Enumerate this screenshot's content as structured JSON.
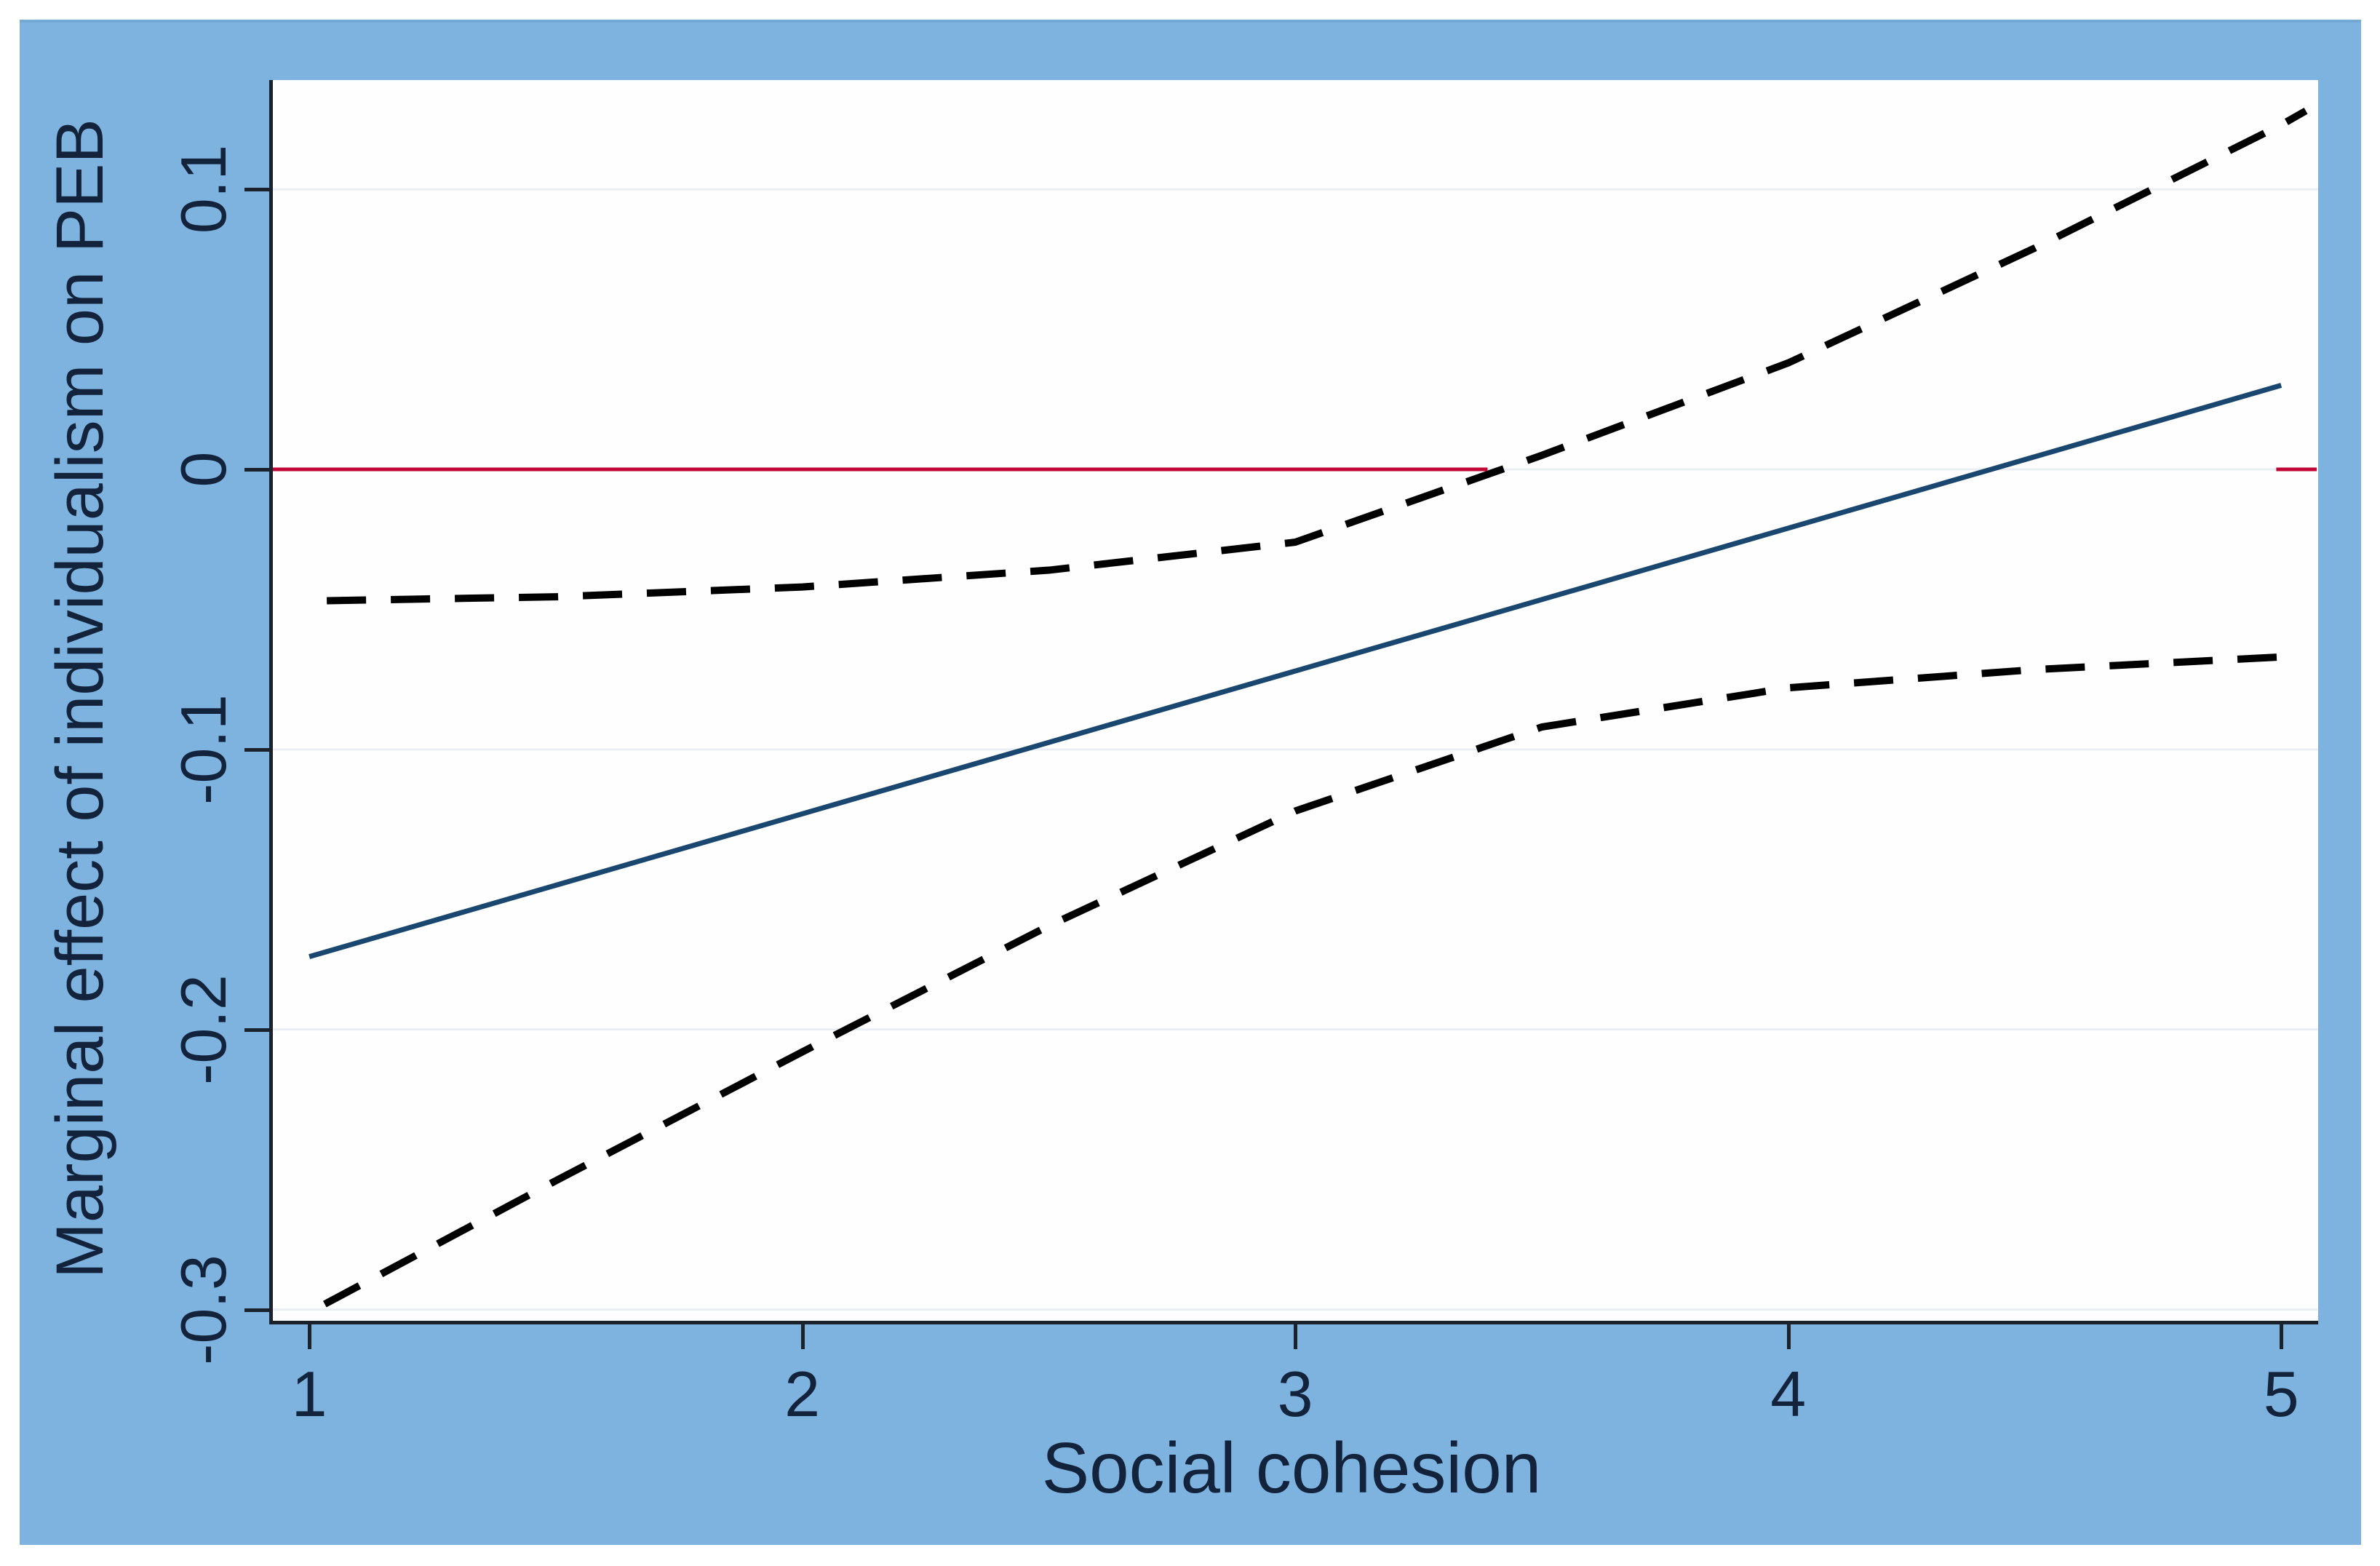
{
  "chart_data": {
    "type": "line",
    "title": "",
    "xlabel": "Social cohesion",
    "ylabel": "Marginal effect of individualism on PEB",
    "x_ticks": [
      1,
      2,
      3,
      4,
      5
    ],
    "x_tick_labels": [
      "1",
      "2",
      "3",
      "4",
      "5"
    ],
    "y_ticks": [
      0.1,
      0,
      -0.1,
      -0.2,
      -0.3
    ],
    "y_tick_labels": [
      "0.1",
      "0",
      "-0.1",
      "-0.2",
      "-0.3"
    ],
    "xlim": [
      0.926,
      5.075
    ],
    "ylim": [
      -0.304,
      0.139
    ],
    "grid": "horizontal-light",
    "legend": "none",
    "colors": {
      "panel_background": "#7db3de",
      "plot_background": "#fefefe",
      "gridline": "#e9eef4",
      "axis": "#1c222b",
      "text": "#13233c",
      "effect_line": "#1a476f",
      "ci_line": "#000000",
      "zero_line": "#c10534"
    },
    "series": [
      {
        "name": "marginal-effect",
        "label": "Marginal effect of individualism on PEB",
        "style": "solid",
        "color": "#1a476f",
        "width": 7,
        "x": [
          1,
          5
        ],
        "y": [
          -0.174,
          0.03
        ]
      },
      {
        "name": "ci-upper",
        "label": "Upper 95% confidence limit",
        "style": "dashed",
        "color": "#000000",
        "width": 10,
        "x": [
          1,
          1.5,
          2,
          2.5,
          3,
          3.5,
          4,
          4.5,
          5,
          5.05
        ],
        "y": [
          -0.047,
          -0.0455,
          -0.042,
          -0.036,
          -0.026,
          0.005,
          0.038,
          0.079,
          0.123,
          0.128
        ]
      },
      {
        "name": "ci-lower",
        "label": "Lower 95% confidence limit",
        "style": "dashed",
        "color": "#000000",
        "width": 10,
        "x": [
          1,
          1.5,
          2,
          2.5,
          3,
          3.5,
          4,
          4.5,
          5,
          5.03
        ],
        "y": [
          -0.301,
          -0.254,
          -0.208,
          -0.163,
          -0.122,
          -0.092,
          -0.078,
          -0.0715,
          -0.067,
          -0.0665
        ]
      },
      {
        "name": "zero-reference",
        "label": "y = 0 reference line",
        "style": "solid",
        "color": "#c10534",
        "width": 5,
        "y_value": 0,
        "segments": [
          [
            0.926,
            3.39
          ],
          [
            4.99,
            5.072
          ]
        ]
      }
    ]
  }
}
